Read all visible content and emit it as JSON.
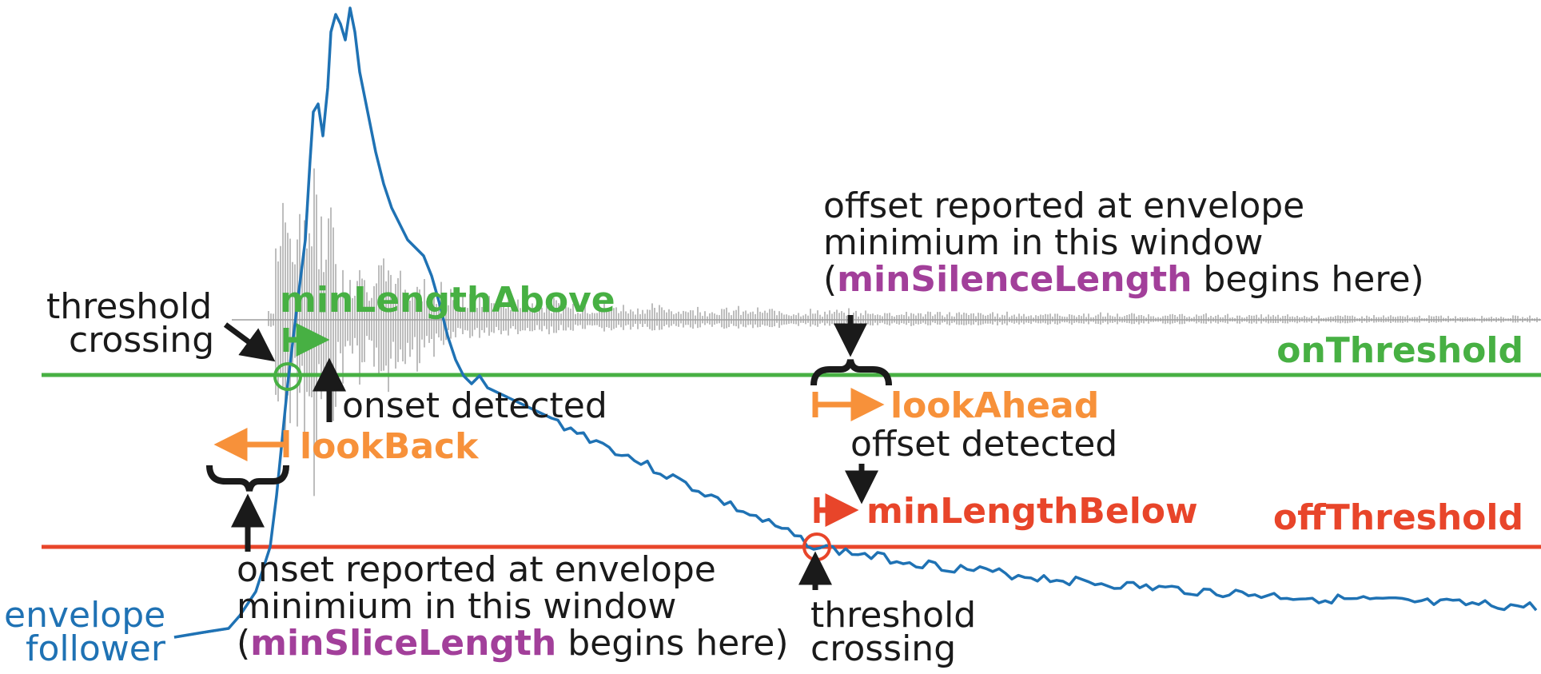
{
  "colors": {
    "on_threshold": "#47b043",
    "off_threshold": "#e8452a",
    "look": "#f7913a",
    "envelope": "#1f72b4",
    "waveform": "#bdbdbd",
    "param": "#a23f9a",
    "text": "#1a1a1a"
  },
  "labels": {
    "threshold_crossing_top_1": "threshold",
    "threshold_crossing_top_2": "crossing",
    "min_length_above": "minLength Above",
    "on_threshold": "onThreshold",
    "off_threshold": "offThreshold",
    "onset_detected": "onset detected",
    "look_back": "lookBack",
    "look_ahead": "lookAhead",
    "offset_detected": "offset detected",
    "min_length_below": "minLengthBelow",
    "offset_reported_1": "offset reported at envelope",
    "offset_reported_2": "minimium in this window",
    "offset_reported_3_pre": "(",
    "offset_reported_3_param": "minSilenceLength",
    "offset_reported_3_post": " begins here)",
    "onset_reported_1": "onset reported at envelope",
    "onset_reported_2": "minimium in this window",
    "onset_reported_3_pre": "(",
    "onset_reported_3_param": "minSliceLength",
    "onset_reported_3_post": " begins here)",
    "envelope_1": "envelope",
    "envelope_2": "follower",
    "threshold_crossing_bottom_1": "threshold",
    "threshold_crossing_bottom_2": "crossing"
  }
}
